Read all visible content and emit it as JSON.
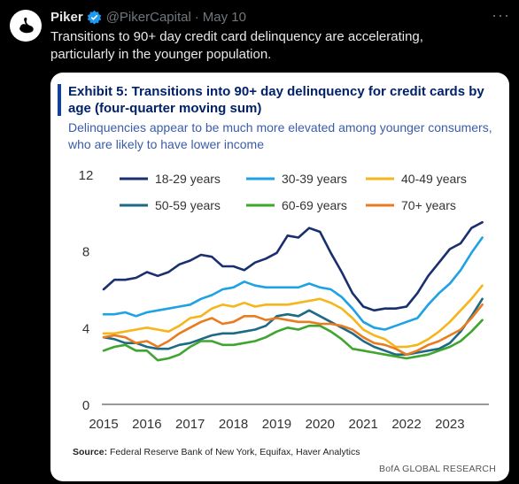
{
  "tweet": {
    "author": "Piker",
    "handle": "@PikerCapital",
    "separator": "·",
    "date": "May 10",
    "text": "Transitions to 90+ day credit card delinquency are accelerating, particularly in the younger population.",
    "more_icon": "more-icon"
  },
  "card": {
    "title": "Exhibit 5: Transitions into 90+ day delinquency for credit cards by age (four-quarter moving sum)",
    "subtitle": "Delinquencies appear to be much more elevated among younger consumers, who are likely to have lower income",
    "source_label": "Source:",
    "source_text": "Federal Reserve Bank of New York, Equifax, Haver Analytics",
    "credit": "BofA GLOBAL RESEARCH"
  },
  "chart_data": {
    "type": "line",
    "title": "Exhibit 5: Transitions into 90+ day delinquency for credit cards by age (four-quarter moving sum)",
    "xlabel": "",
    "ylabel": "",
    "x_ticks": [
      "2015",
      "2016",
      "2017",
      "2018",
      "2019",
      "2020",
      "2021",
      "2022",
      "2023"
    ],
    "y_ticks": [
      0,
      4,
      8,
      12
    ],
    "ylim": [
      0,
      12
    ],
    "xlim": [
      2015.0,
      2023.8
    ],
    "legend_position": "top",
    "x": [
      2015.0,
      2015.25,
      2015.5,
      2015.75,
      2016.0,
      2016.25,
      2016.5,
      2016.75,
      2017.0,
      2017.25,
      2017.5,
      2017.75,
      2018.0,
      2018.25,
      2018.5,
      2018.75,
      2019.0,
      2019.25,
      2019.5,
      2019.75,
      2020.0,
      2020.25,
      2020.5,
      2020.75,
      2021.0,
      2021.25,
      2021.5,
      2021.75,
      2022.0,
      2022.25,
      2022.5,
      2022.75,
      2023.0,
      2023.25,
      2023.5,
      2023.75
    ],
    "series": [
      {
        "name": "18-29 years",
        "color": "#1a2f6e",
        "values": [
          6.0,
          6.5,
          6.5,
          6.6,
          6.9,
          6.7,
          6.9,
          7.3,
          7.5,
          7.8,
          7.7,
          7.2,
          7.2,
          7.0,
          7.4,
          7.6,
          7.9,
          8.8,
          8.7,
          9.2,
          9.0,
          7.9,
          6.9,
          5.8,
          5.1,
          4.9,
          5.0,
          5.0,
          5.1,
          5.8,
          6.7,
          7.4,
          8.1,
          8.4,
          9.2,
          9.5
        ]
      },
      {
        "name": "30-39 years",
        "color": "#1ea2e4",
        "values": [
          4.7,
          4.7,
          4.8,
          4.6,
          4.8,
          4.9,
          5.0,
          5.1,
          5.2,
          5.5,
          5.7,
          6.0,
          6.1,
          6.4,
          6.2,
          6.1,
          6.1,
          6.1,
          6.1,
          6.3,
          6.1,
          6.0,
          5.6,
          5.0,
          4.3,
          4.0,
          3.9,
          4.1,
          4.3,
          4.5,
          5.2,
          5.8,
          6.3,
          7.0,
          7.9,
          8.7
        ]
      },
      {
        "name": "40-49 years",
        "color": "#f5b51b",
        "values": [
          3.7,
          3.7,
          3.8,
          3.9,
          4.0,
          3.9,
          3.8,
          4.1,
          4.5,
          4.6,
          5.0,
          5.2,
          5.1,
          5.3,
          5.1,
          5.2,
          5.2,
          5.2,
          5.3,
          5.4,
          5.5,
          5.3,
          5.0,
          4.5,
          3.9,
          3.6,
          3.4,
          3.0,
          3.0,
          3.1,
          3.4,
          3.8,
          4.3,
          4.9,
          5.5,
          6.2
        ]
      },
      {
        "name": "50-59 years",
        "color": "#1e6a84",
        "values": [
          3.5,
          3.4,
          3.2,
          3.2,
          3.0,
          2.9,
          2.9,
          3.1,
          3.2,
          3.4,
          3.6,
          3.7,
          3.7,
          3.8,
          3.9,
          4.1,
          4.6,
          4.7,
          4.6,
          4.9,
          4.6,
          4.3,
          4.0,
          3.7,
          3.3,
          3.0,
          2.8,
          2.6,
          2.6,
          2.7,
          2.8,
          2.9,
          3.2,
          3.8,
          4.6,
          5.5
        ]
      },
      {
        "name": "60-69 years",
        "color": "#3ea52d",
        "values": [
          2.8,
          3.0,
          3.1,
          2.8,
          2.8,
          2.3,
          2.4,
          2.6,
          3.0,
          3.3,
          3.3,
          3.1,
          3.1,
          3.2,
          3.3,
          3.5,
          3.8,
          4.0,
          3.9,
          4.1,
          4.1,
          3.8,
          3.4,
          2.9,
          2.8,
          2.7,
          2.6,
          2.5,
          2.4,
          2.5,
          2.6,
          2.8,
          3.0,
          3.3,
          3.8,
          4.4
        ]
      },
      {
        "name": "70+ years",
        "color": "#ea7b1f",
        "values": [
          3.5,
          3.6,
          3.5,
          3.2,
          3.3,
          3.0,
          3.3,
          3.7,
          4.0,
          4.3,
          4.5,
          4.2,
          4.3,
          4.6,
          4.6,
          4.4,
          4.5,
          4.4,
          4.3,
          4.3,
          4.2,
          4.2,
          4.1,
          3.9,
          3.5,
          3.2,
          3.1,
          2.9,
          2.6,
          2.8,
          3.1,
          3.3,
          3.6,
          3.9,
          4.5,
          5.2
        ]
      }
    ]
  }
}
